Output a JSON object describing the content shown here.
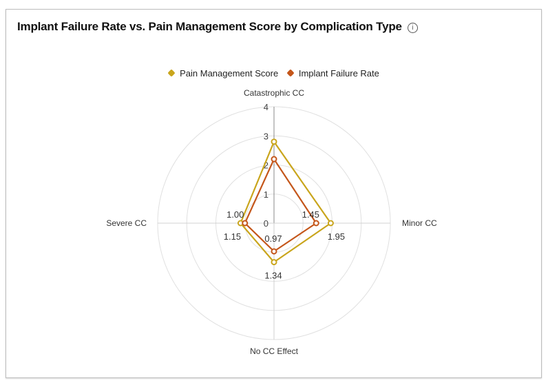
{
  "title": "Implant Failure Rate vs. Pain Management Score by Complication Type",
  "info_icon": "info-circle-icon",
  "chart_data": {
    "type": "radar",
    "title": "Implant Failure Rate vs. Pain Management Score by Complication Type",
    "categories": [
      "Catastrophic CC",
      "Minor CC",
      "No CC Effect",
      "Severe CC"
    ],
    "radial_ticks": [
      "0",
      "1",
      "2",
      "3",
      "4"
    ],
    "rlim": [
      0,
      4
    ],
    "grid": true,
    "legend_position": "top",
    "series": [
      {
        "name": "Pain Management Score",
        "color": "#c9a51c",
        "values": [
          2.8,
          1.95,
          1.34,
          1.15
        ],
        "labels": [
          "",
          "1.95",
          "1.34",
          "1.15"
        ]
      },
      {
        "name": "Implant Failure Rate",
        "color": "#c4561a",
        "values": [
          2.2,
          1.45,
          0.97,
          1.0
        ],
        "labels": [
          "",
          "1.45",
          "0.97",
          "1.00"
        ]
      }
    ]
  }
}
